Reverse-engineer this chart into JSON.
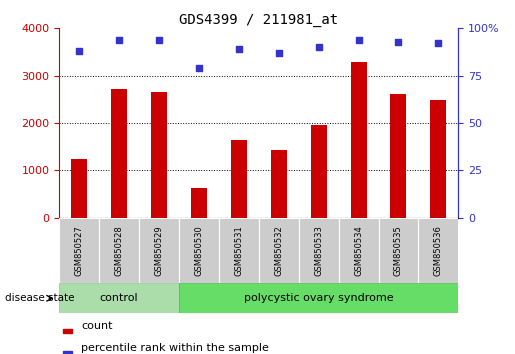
{
  "title": "GDS4399 / 211981_at",
  "samples": [
    "GSM850527",
    "GSM850528",
    "GSM850529",
    "GSM850530",
    "GSM850531",
    "GSM850532",
    "GSM850533",
    "GSM850534",
    "GSM850535",
    "GSM850536"
  ],
  "counts": [
    1250,
    2720,
    2660,
    620,
    1640,
    1440,
    1950,
    3280,
    2620,
    2490
  ],
  "percentiles": [
    88,
    94,
    94,
    79,
    89,
    87,
    90,
    94,
    93,
    92
  ],
  "bar_color": "#cc0000",
  "dot_color": "#3333cc",
  "ylim_left": [
    0,
    4000
  ],
  "ylim_right": [
    0,
    100
  ],
  "yticks_left": [
    0,
    1000,
    2000,
    3000,
    4000
  ],
  "yticks_right": [
    0,
    25,
    50,
    75,
    100
  ],
  "control_count": 3,
  "disease_label": "polycystic ovary syndrome",
  "control_label": "control",
  "group_label": "disease state",
  "legend_count_label": "count",
  "legend_pct_label": "percentile rank within the sample",
  "control_color": "#aaddaa",
  "disease_color": "#66dd66",
  "bg_xtick": "#cccccc",
  "grid_color": "#000000",
  "bar_width": 0.4
}
